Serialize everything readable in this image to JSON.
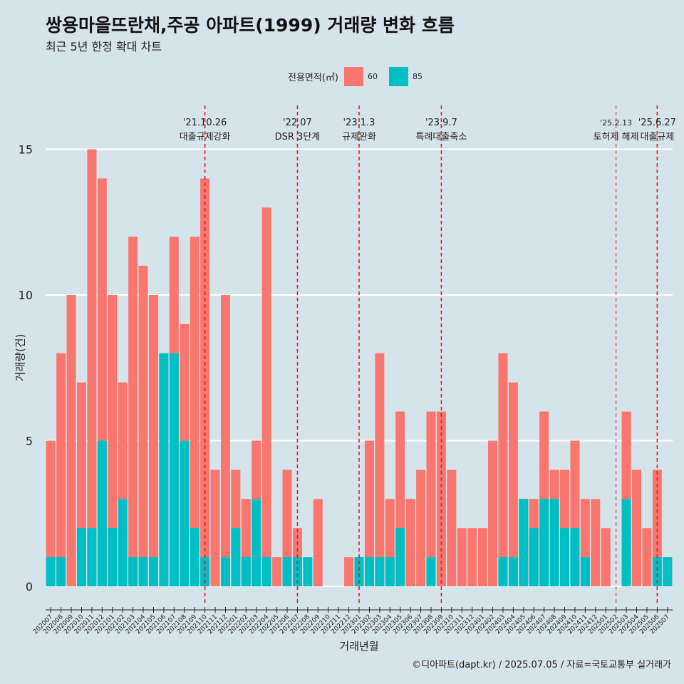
{
  "title": "쌍용마을뜨란채,주공 아파트(1999) 거래량 변화 흐름",
  "subtitle": "최근 5년 한정 확대 차트",
  "legend": {
    "title": "전용면적(㎡)",
    "items": [
      {
        "label": "60",
        "color": "#f8766d"
      },
      {
        "label": "85",
        "color": "#00bfc4"
      }
    ]
  },
  "caption": "©디아파트(dapt.kr) / 2025.07.05 / 자료=국토교통부 실거래가",
  "chart_data": {
    "type": "bar",
    "title": "쌍용마을뜨란채,주공 아파트(1999) 거래량 변화 흐름",
    "subtitle": "최근 5년 한정 확대 차트",
    "xlabel": "거래년월",
    "ylabel": "거래량(건)",
    "ylim": [
      0,
      16
    ],
    "yticks": [
      0,
      5,
      10,
      15
    ],
    "grid": "horizontal",
    "legend_position": "top",
    "categories": [
      "202007",
      "202008",
      "202009",
      "202010",
      "202011",
      "202012",
      "202101",
      "202102",
      "202103",
      "202104",
      "202105",
      "202106",
      "202107",
      "202108",
      "202109",
      "202110",
      "202111",
      "202112",
      "202201",
      "202202",
      "202203",
      "202204",
      "202205",
      "202206",
      "202207",
      "202208",
      "202209",
      "202210",
      "202211",
      "202212",
      "202301",
      "202302",
      "202303",
      "202304",
      "202305",
      "202306",
      "202307",
      "202308",
      "202309",
      "202310",
      "202311",
      "202312",
      "202401",
      "202402",
      "202403",
      "202404",
      "202405",
      "202406",
      "202407",
      "202408",
      "202409",
      "202410",
      "202411",
      "202412",
      "202501",
      "202502",
      "202503",
      "202504",
      "202505",
      "202506",
      "202507"
    ],
    "series": [
      {
        "name": "60",
        "color": "#f8766d",
        "values": [
          5,
          8,
          10,
          7,
          15,
          14,
          10,
          7,
          12,
          11,
          10,
          8,
          12,
          9,
          12,
          14,
          4,
          10,
          4,
          3,
          5,
          13,
          1,
          4,
          2,
          0,
          3,
          0,
          0,
          1,
          1,
          5,
          8,
          3,
          6,
          3,
          4,
          6,
          6,
          4,
          2,
          2,
          2,
          5,
          8,
          7,
          3,
          3,
          6,
          4,
          4,
          5,
          3,
          3,
          2,
          0,
          6,
          4,
          2,
          4,
          1
        ]
      },
      {
        "name": "85",
        "color": "#00bfc4",
        "values": [
          1,
          1,
          0,
          2,
          2,
          5,
          2,
          3,
          1,
          1,
          1,
          8,
          8,
          5,
          2,
          1,
          0,
          1,
          2,
          1,
          3,
          1,
          0,
          1,
          1,
          1,
          0,
          0,
          0,
          0,
          1,
          1,
          1,
          1,
          2,
          0,
          0,
          1,
          0,
          0,
          0,
          0,
          0,
          0,
          1,
          1,
          3,
          2,
          3,
          3,
          2,
          2,
          1,
          0,
          0,
          0,
          3,
          0,
          0,
          1,
          1
        ]
      }
    ],
    "events": [
      {
        "date": "'21.10.26",
        "label": "대출규제강화",
        "at": "202110"
      },
      {
        "date": "'22.07",
        "label": "DSR 3단계",
        "at": "202207"
      },
      {
        "date": "'23.1.3",
        "label": "규제완화",
        "at": "202301"
      },
      {
        "date": "'23.9.7",
        "label": "특례대출축소",
        "at": "202309"
      },
      {
        "date": "'25.2.13",
        "label": "토허제 해제",
        "at": "202502"
      },
      {
        "date": "'25.6.27",
        "label": "대출규제",
        "at": "202506"
      }
    ]
  }
}
